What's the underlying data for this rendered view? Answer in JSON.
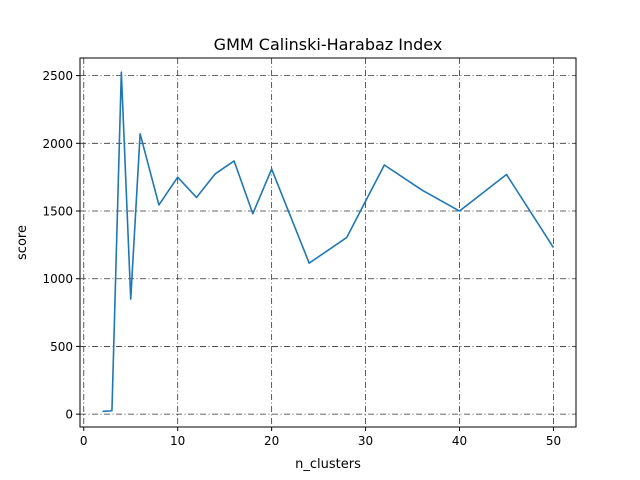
{
  "chart_data": {
    "type": "line",
    "title": "GMM Calinski-Harabaz Index",
    "xlabel": "n_clusters",
    "ylabel": "score",
    "xlim": [
      -0.4,
      52.4
    ],
    "ylim": [
      -95,
      2630
    ],
    "xticks": [
      0,
      10,
      20,
      30,
      40,
      50
    ],
    "yticks": [
      0,
      500,
      1000,
      1500,
      2000,
      2500
    ],
    "grid": true,
    "grid_style": "dashdot",
    "series": [
      {
        "color": "#1f77b4",
        "x": [
          2,
          3,
          4,
          5,
          6,
          8,
          10,
          12,
          14,
          16,
          18,
          20,
          24,
          28,
          32,
          36,
          40,
          45,
          50
        ],
        "y": [
          20,
          25,
          2525,
          850,
          2070,
          1545,
          1750,
          1600,
          1775,
          1870,
          1480,
          1810,
          1115,
          1305,
          1840,
          1655,
          1500,
          1770,
          1230
        ]
      }
    ]
  }
}
